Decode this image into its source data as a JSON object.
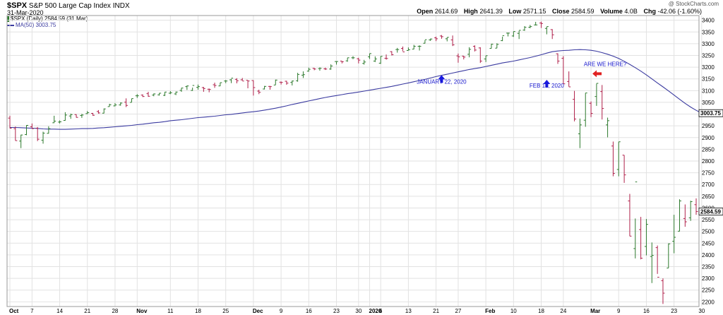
{
  "header": {
    "symbol": "$SPX",
    "name": "S&P 500 Large Cap Index",
    "exchange": "INDX",
    "date": "31-Mar-2020",
    "watermark": "@ StockCharts.com",
    "ohlc": [
      {
        "label": "Open",
        "value": "2614.69"
      },
      {
        "label": "High",
        "value": "2641.39"
      },
      {
        "label": "Low",
        "value": "2571.15"
      },
      {
        "label": "Close",
        "value": "2584.59"
      },
      {
        "label": "Volume",
        "value": "4.0B"
      },
      {
        "label": "Chg",
        "value": "-42.06 (-1.60%)"
      }
    ],
    "legend_price": "$SPX (Daily) 2584.59 (31 Mar)",
    "legend_ma": "MA(50) 3003.75"
  },
  "colors": {
    "up": "#2d7a2d",
    "down": "#b0204a",
    "ma": "#3b3ba0",
    "grid": "#e2e2e2",
    "arrow_blue": "#1a1ae0",
    "arrow_red": "#e02020"
  },
  "chart_data": {
    "type": "ohlc-bar",
    "ylim": [
      2180,
      3420
    ],
    "yticks": [
      2200,
      2250,
      2300,
      2350,
      2400,
      2450,
      2500,
      2550,
      2600,
      2650,
      2700,
      2750,
      2800,
      2850,
      2900,
      2950,
      3000,
      3050,
      3100,
      3150,
      3200,
      3250,
      3300,
      3350,
      3400
    ],
    "xticks": [
      {
        "label": "Oct",
        "i": 0,
        "bold": true
      },
      {
        "label": "7",
        "i": 4
      },
      {
        "label": "14",
        "i": 9
      },
      {
        "label": "21",
        "i": 14
      },
      {
        "label": "28",
        "i": 19
      },
      {
        "label": "Nov",
        "i": 23,
        "bold": true
      },
      {
        "label": "11",
        "i": 29
      },
      {
        "label": "18",
        "i": 34
      },
      {
        "label": "25",
        "i": 39
      },
      {
        "label": "Dec",
        "i": 44,
        "bold": true
      },
      {
        "label": "9",
        "i": 49
      },
      {
        "label": "16",
        "i": 54
      },
      {
        "label": "23",
        "i": 59
      },
      {
        "label": "30",
        "i": 63
      },
      {
        "label": "2020",
        "i": 65,
        "bold": true
      },
      {
        "label": "6",
        "i": 67
      },
      {
        "label": "13",
        "i": 72
      },
      {
        "label": "21",
        "i": 77
      },
      {
        "label": "27",
        "i": 81
      },
      {
        "label": "Feb",
        "i": 86,
        "bold": true
      },
      {
        "label": "10",
        "i": 91
      },
      {
        "label": "18",
        "i": 96
      },
      {
        "label": "24",
        "i": 100
      },
      {
        "label": "Mar",
        "i": 105,
        "bold": true
      },
      {
        "label": "9",
        "i": 110
      },
      {
        "label": "16",
        "i": 115
      },
      {
        "label": "23",
        "i": 120
      },
      {
        "label": "30",
        "i": 125
      }
    ],
    "bars": [
      [
        2983,
        2993,
        2940,
        2940
      ],
      [
        2938,
        2947,
        2887,
        2887
      ],
      [
        2885,
        2912,
        2855,
        2911
      ],
      [
        2913,
        2953,
        2910,
        2952
      ],
      [
        2946,
        2960,
        2938,
        2938
      ],
      [
        2940,
        2945,
        2885,
        2893
      ],
      [
        2889,
        2925,
        2874,
        2919
      ],
      [
        2918,
        2948,
        2917,
        2938
      ],
      [
        2963,
        2993,
        2962,
        2970
      ],
      [
        2966,
        2973,
        2960,
        2967
      ],
      [
        2973,
        3008,
        2972,
        2996
      ],
      [
        2992,
        3002,
        2980,
        2998
      ],
      [
        2998,
        2999,
        2985,
        2986
      ],
      [
        2994,
        3001,
        2984,
        2996
      ],
      [
        3002,
        3013,
        3000,
        3006
      ],
      [
        3003,
        3005,
        2993,
        2995
      ],
      [
        3011,
        3017,
        3002,
        3005
      ],
      [
        3004,
        3024,
        3003,
        3022
      ],
      [
        3032,
        3044,
        3032,
        3040
      ],
      [
        3035,
        3047,
        3033,
        3039
      ],
      [
        3039,
        3050,
        3036,
        3047
      ],
      [
        3051,
        3067,
        3030,
        3037
      ],
      [
        3050,
        3066,
        3050,
        3066
      ],
      [
        3078,
        3085,
        3069,
        3078
      ],
      [
        3081,
        3084,
        3073,
        3075
      ],
      [
        3087,
        3095,
        3074,
        3076
      ],
      [
        3081,
        3088,
        3076,
        3086
      ],
      [
        3082,
        3090,
        3079,
        3089
      ],
      [
        3080,
        3094,
        3077,
        3094
      ],
      [
        3089,
        3098,
        3085,
        3091
      ],
      [
        3086,
        3096,
        3081,
        3094
      ],
      [
        3101,
        3112,
        3095,
        3111
      ],
      [
        3117,
        3122,
        3103,
        3120
      ],
      [
        3101,
        3113,
        3099,
        3122
      ],
      [
        3114,
        3126,
        3104,
        3117
      ],
      [
        3113,
        3116,
        3095,
        3109
      ],
      [
        3106,
        3109,
        3093,
        3105
      ],
      [
        3125,
        3134,
        3112,
        3122
      ],
      [
        3120,
        3134,
        3119,
        3134
      ],
      [
        3141,
        3145,
        3132,
        3141
      ],
      [
        3146,
        3150,
        3132,
        3153
      ],
      [
        3148,
        3153,
        3131,
        3142
      ],
      [
        3146,
        3154,
        3143,
        3141
      ],
      [
        3144,
        3144,
        3110,
        3141
      ],
      [
        3143,
        3144,
        3079,
        3113
      ],
      [
        3098,
        3104,
        3085,
        3093
      ],
      [
        3107,
        3120,
        3105,
        3118
      ],
      [
        3118,
        3120,
        3104,
        3117
      ],
      [
        3124,
        3147,
        3124,
        3145
      ],
      [
        3136,
        3139,
        3126,
        3135
      ],
      [
        3140,
        3142,
        3125,
        3132
      ],
      [
        3135,
        3143,
        3122,
        3141
      ],
      [
        3142,
        3176,
        3138,
        3169
      ],
      [
        3166,
        3182,
        3154,
        3168
      ],
      [
        3183,
        3198,
        3181,
        3191
      ],
      [
        3195,
        3197,
        3187,
        3192
      ],
      [
        3194,
        3199,
        3185,
        3195
      ],
      [
        3193,
        3198,
        3188,
        3192
      ],
      [
        3192,
        3212,
        3189,
        3205
      ],
      [
        3224,
        3225,
        3211,
        3224
      ],
      [
        3226,
        3226,
        3216,
        3223
      ],
      [
        3227,
        3240,
        3223,
        3240
      ],
      [
        3240,
        3247,
        3234,
        3240
      ],
      [
        3236,
        3240,
        3216,
        3230
      ],
      [
        3216,
        3231,
        3211,
        3222
      ],
      [
        3244,
        3258,
        3235,
        3258
      ],
      [
        3226,
        3246,
        3222,
        3235
      ],
      [
        3217,
        3247,
        3214,
        3246
      ],
      [
        3238,
        3254,
        3232,
        3237
      ],
      [
        3266,
        3268,
        3250,
        3253
      ],
      [
        3275,
        3282,
        3262,
        3275
      ],
      [
        3280,
        3288,
        3268,
        3265
      ],
      [
        3271,
        3284,
        3271,
        3274
      ],
      [
        3277,
        3295,
        3276,
        3289
      ],
      [
        3289,
        3293,
        3271,
        3289
      ],
      [
        3302,
        3315,
        3301,
        3317
      ],
      [
        3316,
        3322,
        3312,
        3320
      ],
      [
        3325,
        3330,
        3311,
        3321
      ],
      [
        3333,
        3337,
        3321,
        3330
      ],
      [
        3321,
        3327,
        3310,
        3327
      ],
      [
        3316,
        3335,
        3290,
        3295
      ],
      [
        3248,
        3258,
        3219,
        3244
      ],
      [
        3247,
        3248,
        3233,
        3243
      ],
      [
        3255,
        3285,
        3242,
        3276
      ],
      [
        3289,
        3293,
        3267,
        3273
      ],
      [
        3282,
        3285,
        3218,
        3226
      ],
      [
        3235,
        3249,
        3222,
        3249
      ],
      [
        3280,
        3300,
        3280,
        3298
      ],
      [
        3281,
        3302,
        3281,
        3297
      ],
      [
        3313,
        3330,
        3311,
        3334
      ],
      [
        3345,
        3347,
        3331,
        3345
      ],
      [
        3333,
        3352,
        3329,
        3352
      ],
      [
        3344,
        3355,
        3320,
        3357
      ],
      [
        3358,
        3375,
        3355,
        3370
      ],
      [
        3370,
        3380,
        3366,
        3373
      ],
      [
        3380,
        3393,
        3378,
        3380
      ],
      [
        3388,
        3394,
        3367,
        3386
      ],
      [
        3365,
        3372,
        3340,
        3373
      ],
      [
        3360,
        3362,
        3320,
        3338
      ],
      [
        3257,
        3259,
        3214,
        3226
      ],
      [
        3238,
        3247,
        3128,
        3129
      ],
      [
        3139,
        3182,
        3117,
        3116
      ],
      [
        3063,
        3099,
        2969,
        2979
      ],
      [
        2916,
        2981,
        2855,
        2954
      ],
      [
        2974,
        3090,
        2946,
        3090
      ],
      [
        3046,
        3054,
        2987,
        3003
      ],
      [
        3075,
        3130,
        3035,
        3131
      ],
      [
        3096,
        3124,
        2977,
        3024
      ],
      [
        2954,
        2985,
        2901,
        2972
      ],
      [
        2864,
        2883,
        2735,
        2747
      ],
      [
        2764,
        2882,
        2735,
        2882
      ],
      [
        2825,
        2825,
        2707,
        2741
      ],
      [
        2630,
        2660,
        2480,
        2480
      ],
      [
        2427,
        2555,
        2385,
        2711
      ],
      [
        2508,
        2562,
        2381,
        2386
      ],
      [
        2436,
        2553,
        2398,
        2530
      ],
      [
        2393,
        2453,
        2280,
        2398
      ],
      [
        2431,
        2440,
        2319,
        2305
      ],
      [
        2290,
        2300,
        2191,
        2237
      ],
      [
        2344,
        2449,
        2344,
        2447
      ],
      [
        2458,
        2571,
        2407,
        2475
      ],
      [
        2501,
        2637,
        2500,
        2630
      ],
      [
        2555,
        2615,
        2520,
        2541
      ],
      [
        2558,
        2631,
        2545,
        2627
      ],
      [
        2614,
        2641,
        2571,
        2585
      ]
    ],
    "ma50": [
      2943,
      2943,
      2942,
      2941,
      2940,
      2939,
      2937,
      2936,
      2936,
      2935,
      2935,
      2936,
      2937,
      2938,
      2938,
      2939,
      2941,
      2942,
      2944,
      2946,
      2948,
      2950,
      2952,
      2955,
      2957,
      2960,
      2963,
      2965,
      2968,
      2972,
      2974,
      2976,
      2979,
      2982,
      2985,
      2987,
      2989,
      2991,
      2994,
      2997,
      2999,
      3002,
      3005,
      3008,
      3010,
      3013,
      3017,
      3021,
      3025,
      3030,
      3035,
      3041,
      3046,
      3051,
      3056,
      3061,
      3066,
      3071,
      3075,
      3079,
      3083,
      3087,
      3090,
      3094,
      3098,
      3102,
      3106,
      3110,
      3114,
      3118,
      3123,
      3128,
      3133,
      3138,
      3143,
      3148,
      3154,
      3160,
      3165,
      3170,
      3175,
      3180,
      3185,
      3190,
      3194,
      3198,
      3203,
      3208,
      3213,
      3218,
      3222,
      3226,
      3231,
      3236,
      3241,
      3247,
      3253,
      3260,
      3266,
      3269,
      3271,
      3272,
      3274,
      3275,
      3274,
      3272,
      3268,
      3262,
      3255,
      3247,
      3237,
      3225,
      3212,
      3198,
      3183,
      3167,
      3150,
      3133,
      3116,
      3099,
      3081,
      3063,
      3046,
      3030,
      3016,
      3004
    ],
    "annotations": [
      {
        "text": "JANUARY 22, 2020",
        "i": 78,
        "y": 3130,
        "arrow_y": 3148,
        "color": "blue",
        "dir": "up"
      },
      {
        "text": "FEB 19, 2020",
        "i": 97,
        "y": 3113,
        "arrow_y": 3128,
        "color": "blue",
        "dir": "up"
      },
      {
        "text": "ARE WE HERE?",
        "i": 105,
        "y": 3205,
        "arrow_y": 3172,
        "color": "red",
        "dir": "left"
      }
    ],
    "last_close_label": "2584.59",
    "last_ma_label": "3003.75"
  }
}
